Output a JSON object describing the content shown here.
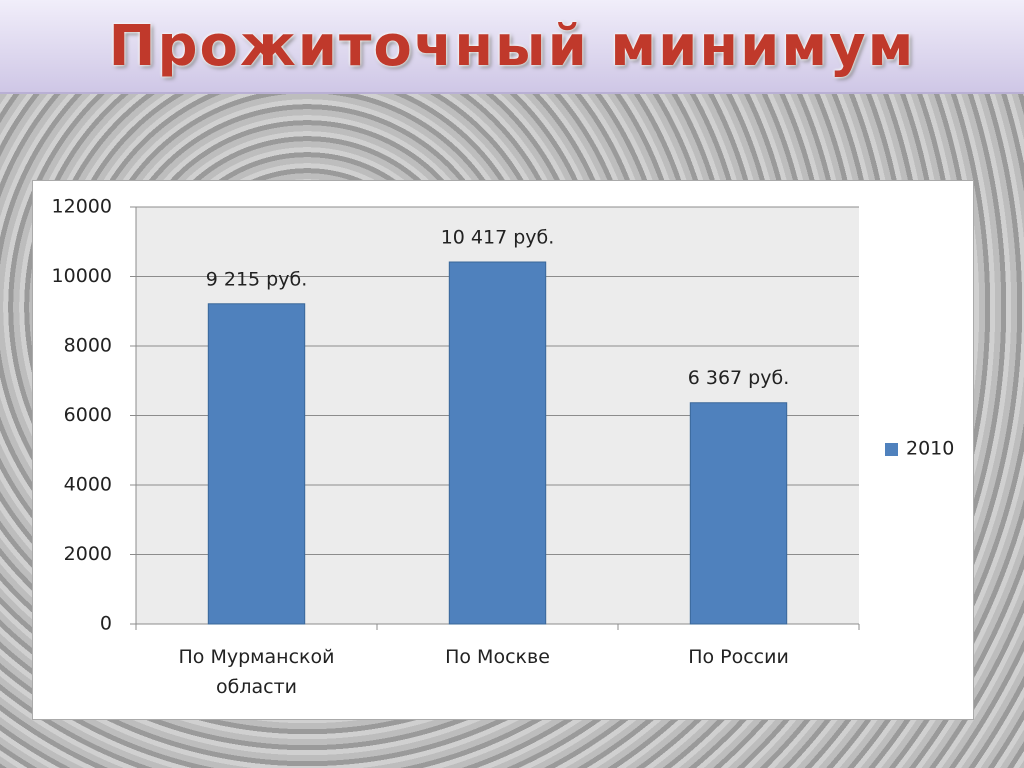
{
  "chart_data": {
    "type": "bar",
    "title": "Прожиточный минимум",
    "categories": [
      "По Мурманской области",
      "По Москве",
      "По России"
    ],
    "series": [
      {
        "name": "2010",
        "color": "#4f81bd",
        "values": [
          9215,
          10417,
          6367
        ],
        "value_labels": [
          "9 215 руб.",
          "10 417 руб.",
          "6 367 руб."
        ]
      }
    ],
    "ylim": [
      0,
      12000
    ],
    "yticks": [
      0,
      2000,
      4000,
      6000,
      8000,
      10000,
      12000
    ],
    "grid": true,
    "legend": "right"
  }
}
